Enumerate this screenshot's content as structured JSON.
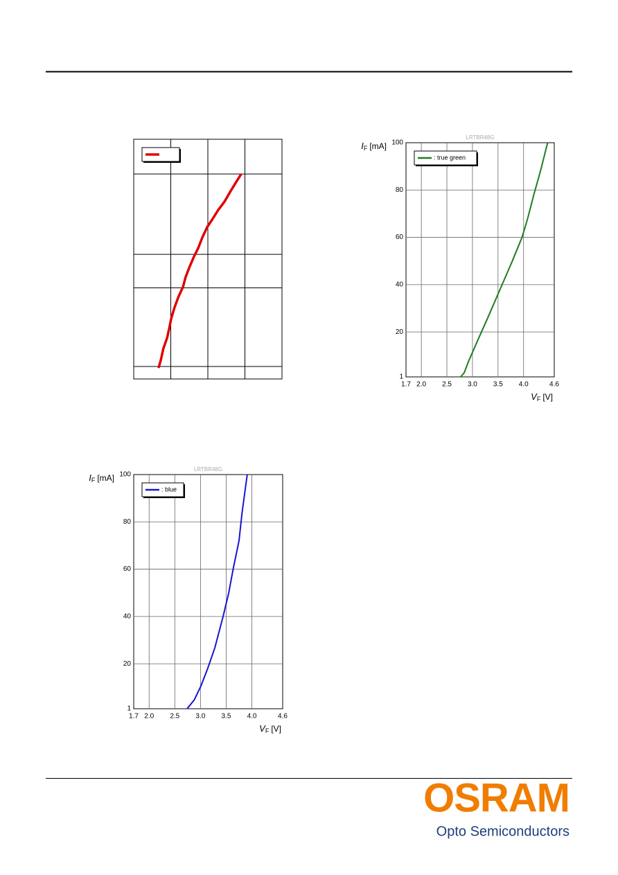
{
  "chart_data": [
    {
      "type": "line",
      "color_legend": true,
      "series": [
        {
          "color": "#e00000",
          "x": [
            0.67,
            0.73,
            0.8,
            0.9,
            0.95,
            1.01,
            1.1,
            1.21,
            1.33,
            1.4,
            1.5,
            1.63,
            1.74,
            1.85,
            1.98,
            2.13,
            2.28,
            2.45,
            2.6,
            2.75,
            2.9
          ],
          "values": [
            4.6,
            7.8,
            12.7,
            17.1,
            20.5,
            25.1,
            29.8,
            34.4,
            38.4,
            42.5,
            46.5,
            51.2,
            54.6,
            59.0,
            63.3,
            66.8,
            70.5,
            74.0,
            78.0,
            81.8,
            85.5
          ]
        }
      ],
      "xlim": [
        0,
        4
      ],
      "ylim": [
        0,
        100
      ],
      "xgrid": [
        1,
        2,
        3
      ],
      "ygrid": [
        5.2,
        38,
        52,
        85.5
      ]
    },
    {
      "type": "line",
      "title": "LRTBR48G",
      "ylabel": [
        "I",
        "F",
        "[mA]"
      ],
      "xlabel": [
        "V",
        "F",
        "[V]"
      ],
      "series": [
        {
          "name": ": true green",
          "color": "#1e7d1e",
          "x": [
            2.77,
            2.84,
            2.92,
            3.11,
            3.31,
            3.58,
            3.78,
            3.97,
            4.08,
            4.2,
            4.33,
            4.47
          ],
          "values": [
            1,
            2.8,
            7.4,
            16.8,
            26.5,
            40,
            50,
            60,
            68,
            78,
            88,
            100
          ]
        }
      ],
      "xlim": [
        1.7,
        4.6
      ],
      "ylim": [
        1,
        100
      ],
      "xticks": [
        1.7,
        {
          "value": 2,
          "label": "2.0"
        },
        2.5,
        {
          "value": 3,
          "label": "3.0"
        },
        3.5,
        {
          "value": 4,
          "label": "4.0"
        },
        4.6
      ],
      "yticks": [
        1,
        20,
        40,
        60,
        80,
        100
      ]
    },
    {
      "type": "line",
      "title": "LRTBR48G",
      "ylabel": [
        "I",
        "F",
        "[mA]"
      ],
      "xlabel": [
        "V",
        "F",
        "[V]"
      ],
      "series": [
        {
          "name": ": blue",
          "color": "#1515d0",
          "x": [
            2.74,
            2.88,
            3.01,
            3.14,
            3.28,
            3.44,
            3.55,
            3.64,
            3.75,
            3.81,
            3.91
          ],
          "values": [
            1,
            4.8,
            10.7,
            18,
            26.8,
            40,
            50,
            60.5,
            72,
            84,
            100
          ]
        }
      ],
      "xlim": [
        1.7,
        4.6
      ],
      "ylim": [
        1,
        100
      ],
      "xticks": [
        1.7,
        {
          "value": 2,
          "label": "2.0"
        },
        2.5,
        {
          "value": 3,
          "label": "3.0"
        },
        3.5,
        {
          "value": 4,
          "label": "4.0"
        },
        4.6
      ],
      "yticks": [
        1,
        20,
        40,
        60,
        80,
        100
      ]
    }
  ],
  "footer": {
    "logo": "OSRAM",
    "tagline": "Opto Semiconductors"
  }
}
